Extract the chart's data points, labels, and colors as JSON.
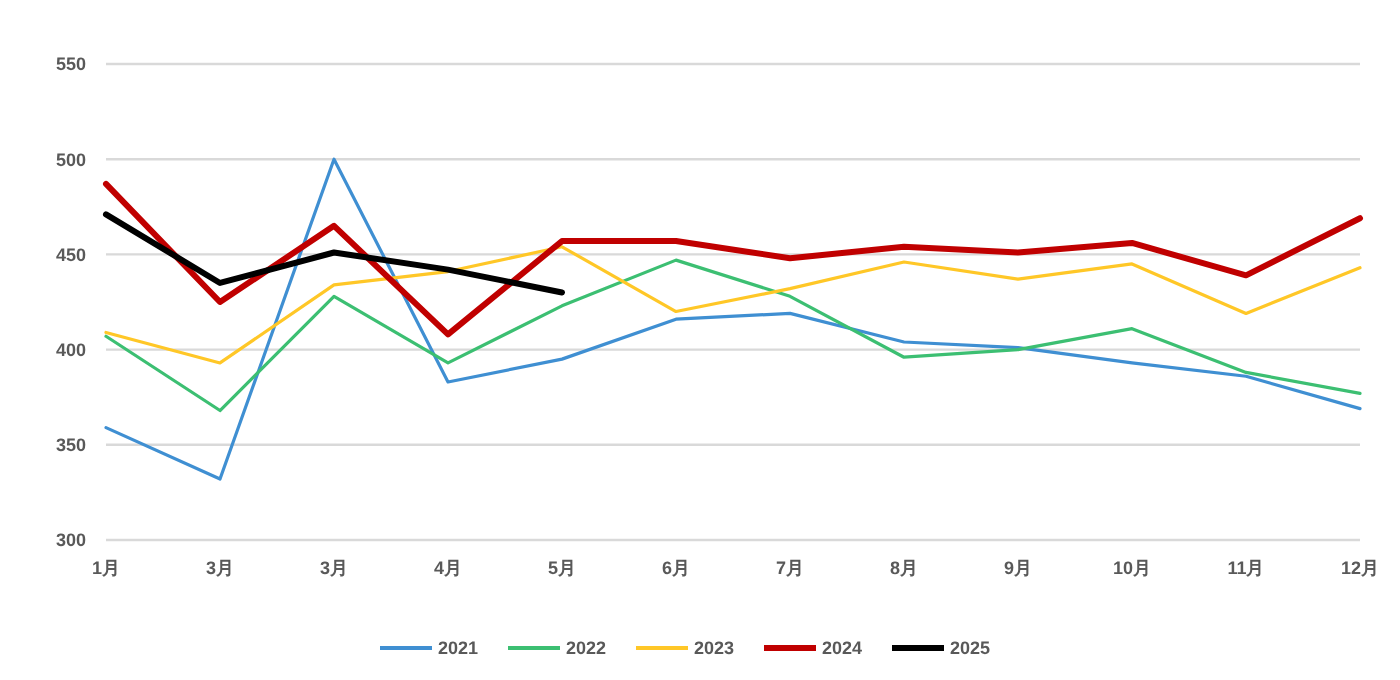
{
  "chart_data": {
    "type": "line",
    "categories": [
      "1月",
      "3月",
      "3月",
      "4月",
      "5月",
      "6月",
      "7月",
      "8月",
      "9月",
      "10月",
      "11月",
      "12月"
    ],
    "ylim": [
      300,
      550
    ],
    "yticks": [
      300,
      350,
      400,
      450,
      500,
      550
    ],
    "grid": "y",
    "legend": "bottom",
    "marker": "none",
    "series": [
      {
        "name": "2021",
        "color": "#3f8fd2",
        "values": [
          359,
          332,
          500,
          383,
          395,
          416,
          419,
          404,
          401,
          393,
          386,
          369
        ]
      },
      {
        "name": "2022",
        "color": "#3cbf72",
        "values": [
          407,
          368,
          428,
          393,
          423,
          447,
          428,
          396,
          400,
          411,
          388,
          377
        ]
      },
      {
        "name": "2023",
        "color": "#ffc727",
        "values": [
          409,
          393,
          434,
          441,
          454,
          420,
          432,
          446,
          437,
          445,
          419,
          443
        ]
      },
      {
        "name": "2024",
        "color": "#c00000",
        "values": [
          487,
          425,
          465,
          408,
          457,
          457,
          448,
          454,
          451,
          456,
          439,
          469
        ]
      },
      {
        "name": "2025",
        "color": "#000000",
        "values": [
          471,
          435,
          451,
          442,
          430,
          null,
          null,
          null,
          null,
          null,
          null,
          null
        ]
      }
    ]
  }
}
